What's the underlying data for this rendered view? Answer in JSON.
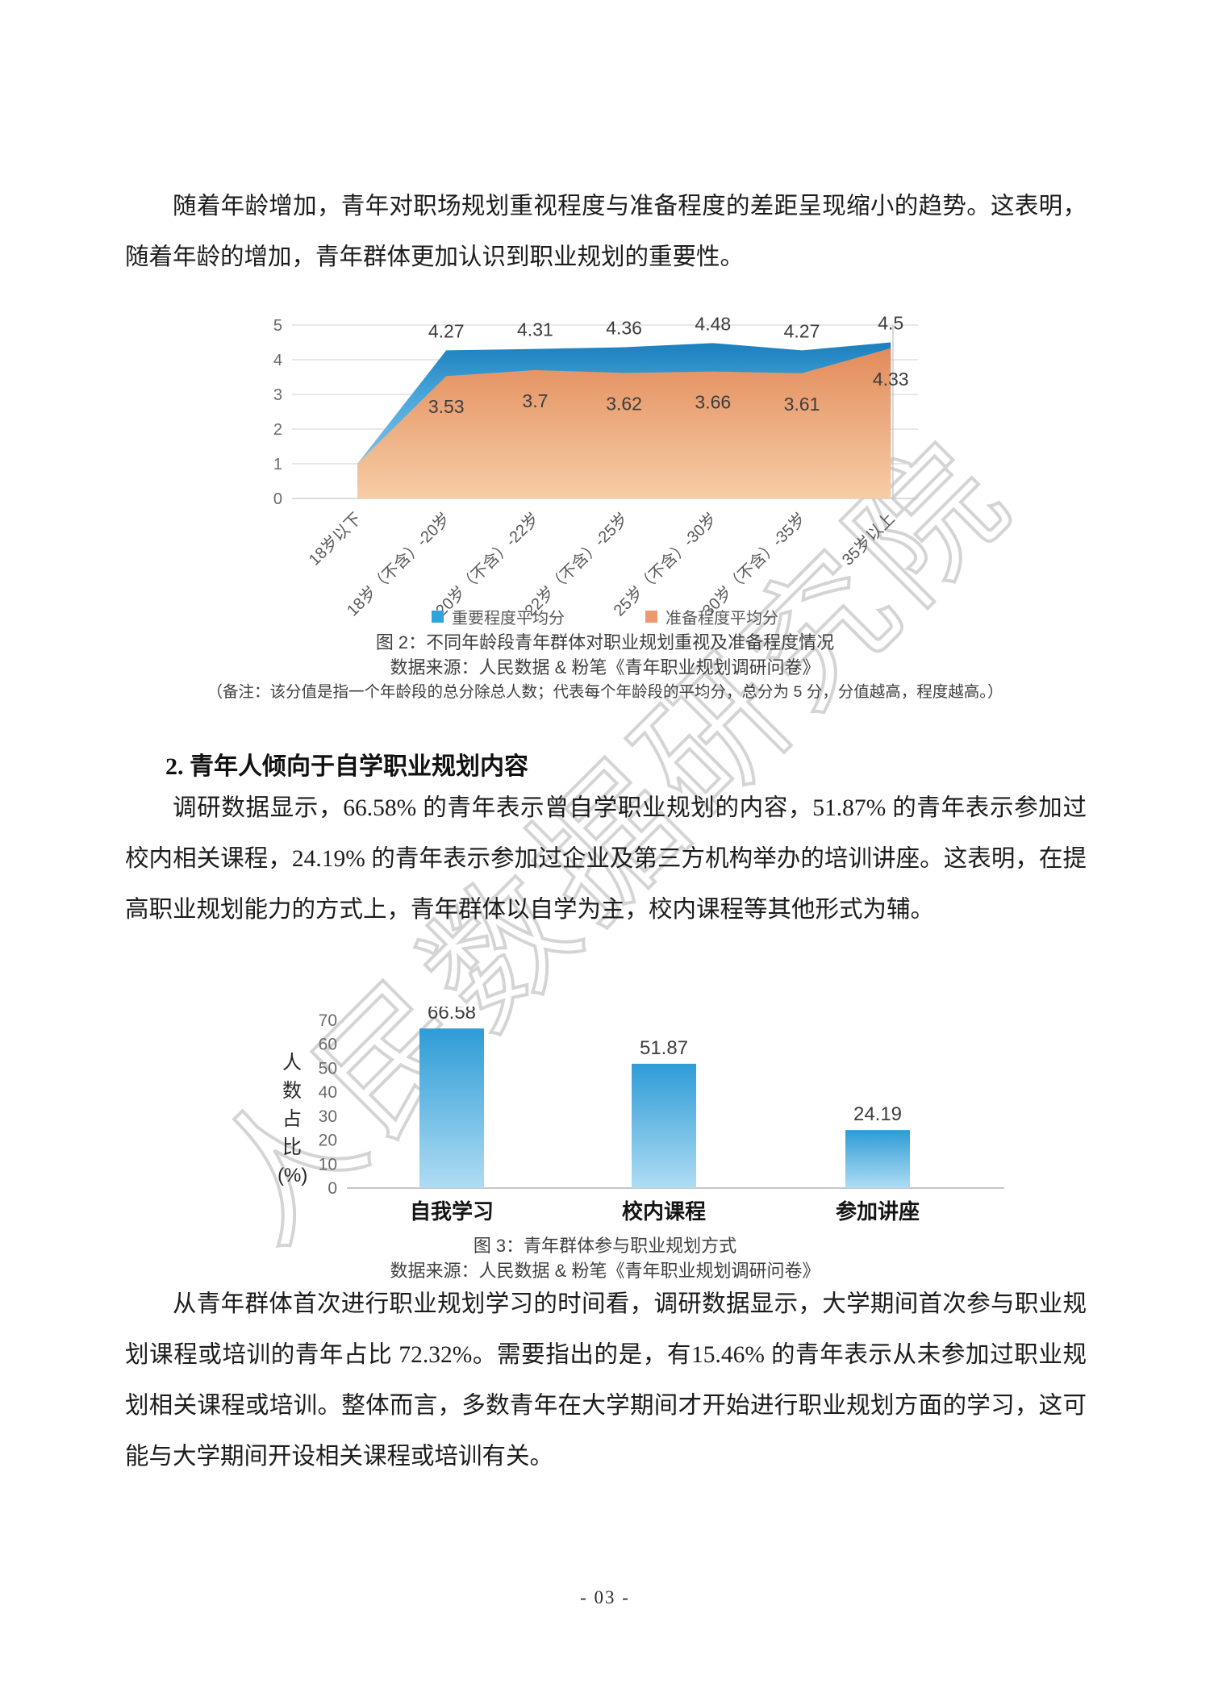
{
  "page": {
    "watermark": "人民数据研究院",
    "page_number": "- 03 -",
    "paragraph1": "随着年龄增加，青年对职场规划重视程度与准备程度的差距呈现缩小的趋势。这表明，随着年龄的增加，青年群体更加认识到职业规划的重要性。",
    "section2_heading": "2. 青年人倾向于自学职业规划内容",
    "paragraph2": "调研数据显示，66.58% 的青年表示曾自学职业规划的内容，51.87% 的青年表示参加过校内相关课程，24.19% 的青年表示参加过企业及第三方机构举办的培训讲座。这表明，在提高职业规划能力的方式上，青年群体以自学为主，校内课程等其他形式为辅。",
    "paragraph3": "从青年群体首次进行职业规划学习的时间看，调研数据显示，大学期间首次参与职业规划课程或培训的青年占比 72.32%。需要指出的是，有15.46% 的青年表示从未参加过职业规划相关课程或培训。整体而言，多数青年在大学期间才开始进行职业规划方面的学习，这可能与大学期间开设相关课程或培训有关。"
  },
  "figure2": {
    "caption": "图 2：不同年龄段青年群体对职业规划重视及准备程度情况",
    "source": "数据来源：人民数据 & 粉笔《青年职业规划调研问卷》",
    "note": "（备注：该分值是指一个年龄段的总分除总人数；代表每个年龄段的平均分，总分为 5 分，分值越高，程度越高。）"
  },
  "figure3": {
    "caption": "图 3：青年群体参与职业规划方式",
    "source": "数据来源：人民数据 & 粉笔《青年职业规划调研问卷》"
  },
  "chart_data": [
    {
      "type": "area",
      "title": "不同年龄段青年群体对职业规划重视及准备程度情况",
      "categories": [
        "18岁以下",
        "18岁（不含）-20岁",
        "20岁（不含）-22岁",
        "22岁（不含）-25岁",
        "25岁（不含）-30岁",
        "30岁（不含）-35岁",
        "35岁以上"
      ],
      "series": [
        {
          "name": "重要程度平均分",
          "color": "#2FA3DC",
          "values": [
            1,
            4.27,
            4.31,
            4.36,
            4.48,
            4.27,
            4.5
          ]
        },
        {
          "name": "准备程度平均分",
          "color": "#EC9A6D",
          "values": [
            1,
            3.53,
            3.7,
            3.62,
            3.66,
            3.61,
            4.33
          ]
        }
      ],
      "labeled_indices": [
        1,
        2,
        3,
        4,
        5,
        6
      ],
      "ylim": [
        0,
        5
      ],
      "yticks": [
        0,
        1,
        2,
        3,
        4,
        5
      ],
      "grid": true,
      "legend_position": "bottom"
    },
    {
      "type": "bar",
      "title": "青年群体参与职业规划方式",
      "categories": [
        "自我学习",
        "校内课程",
        "参加讲座"
      ],
      "values": [
        66.58,
        51.87,
        24.19
      ],
      "ylabel": "人数占比(%)",
      "ylabel_lines": [
        "人",
        "数",
        "占",
        "比",
        "(%)"
      ],
      "ylim": [
        0,
        70
      ],
      "yticks": [
        0,
        10,
        20,
        30,
        40,
        50,
        60,
        70
      ],
      "grid": false,
      "bar_color_top": "#2E9CD6",
      "bar_color_bottom": "#AFDCF3"
    }
  ]
}
